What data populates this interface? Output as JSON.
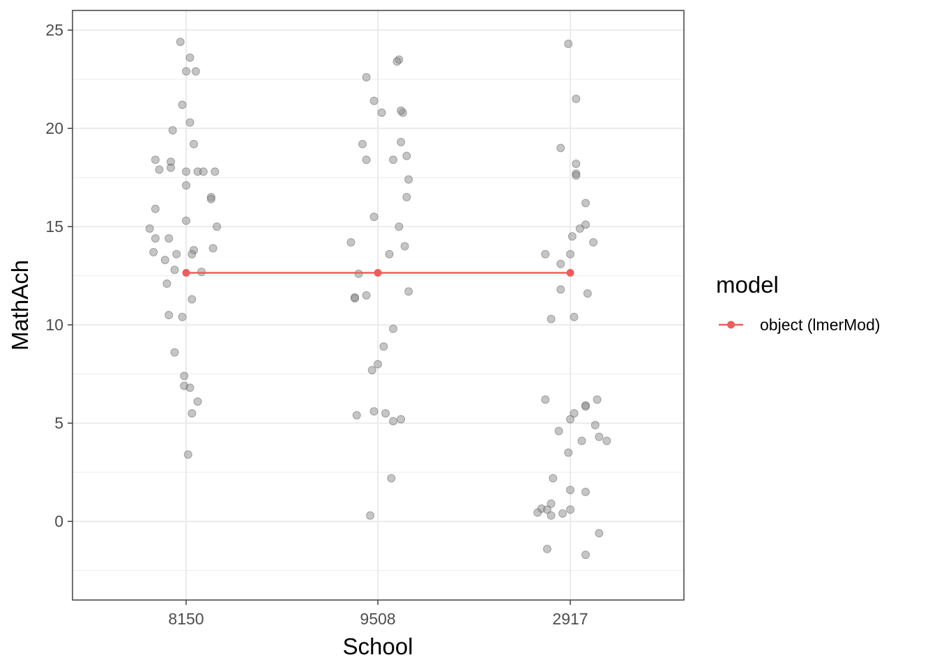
{
  "chart_data": {
    "type": "scatter",
    "xlabel": "School",
    "ylabel": "MathAch",
    "categories": [
      "8150",
      "9508",
      "2917"
    ],
    "ylim": [
      -4.0,
      26.0
    ],
    "yticks": [
      0,
      5,
      10,
      15,
      20,
      25
    ],
    "grid": true,
    "legend": {
      "title": "model",
      "placement": "right",
      "entries": [
        {
          "label": "object (lmerMod)"
        }
      ]
    },
    "colors": {
      "points": "#8c8c8c",
      "model_line": "#f05c5c",
      "grid": "#ebebeb",
      "panel_border": "#333333"
    },
    "series": [
      {
        "kind": "jittered-points",
        "points": [
          {
            "x": "8150",
            "jitter": -0.03,
            "y": 24.4
          },
          {
            "x": "8150",
            "jitter": 0.02,
            "y": 23.6
          },
          {
            "x": "8150",
            "jitter": 0.0,
            "y": 22.9
          },
          {
            "x": "8150",
            "jitter": 0.05,
            "y": 22.9
          },
          {
            "x": "8150",
            "jitter": -0.02,
            "y": 21.2
          },
          {
            "x": "8150",
            "jitter": 0.02,
            "y": 20.3
          },
          {
            "x": "8150",
            "jitter": -0.07,
            "y": 19.9
          },
          {
            "x": "8150",
            "jitter": 0.04,
            "y": 19.2
          },
          {
            "x": "8150",
            "jitter": -0.16,
            "y": 18.4
          },
          {
            "x": "8150",
            "jitter": -0.08,
            "y": 18.3
          },
          {
            "x": "8150",
            "jitter": -0.08,
            "y": 18.0
          },
          {
            "x": "8150",
            "jitter": -0.14,
            "y": 17.9
          },
          {
            "x": "8150",
            "jitter": 0.0,
            "y": 17.8
          },
          {
            "x": "8150",
            "jitter": 0.06,
            "y": 17.8
          },
          {
            "x": "8150",
            "jitter": 0.09,
            "y": 17.8
          },
          {
            "x": "8150",
            "jitter": 0.15,
            "y": 17.8
          },
          {
            "x": "8150",
            "jitter": 0.0,
            "y": 17.1
          },
          {
            "x": "8150",
            "jitter": 0.13,
            "y": 16.5
          },
          {
            "x": "8150",
            "jitter": 0.13,
            "y": 16.4
          },
          {
            "x": "8150",
            "jitter": -0.16,
            "y": 15.9
          },
          {
            "x": "8150",
            "jitter": 0.0,
            "y": 15.3
          },
          {
            "x": "8150",
            "jitter": -0.19,
            "y": 14.9
          },
          {
            "x": "8150",
            "jitter": 0.16,
            "y": 15.0
          },
          {
            "x": "8150",
            "jitter": -0.16,
            "y": 14.4
          },
          {
            "x": "8150",
            "jitter": -0.09,
            "y": 14.4
          },
          {
            "x": "8150",
            "jitter": 0.14,
            "y": 13.9
          },
          {
            "x": "8150",
            "jitter": 0.04,
            "y": 13.8
          },
          {
            "x": "8150",
            "jitter": -0.17,
            "y": 13.7
          },
          {
            "x": "8150",
            "jitter": -0.05,
            "y": 13.6
          },
          {
            "x": "8150",
            "jitter": 0.03,
            "y": 13.6
          },
          {
            "x": "8150",
            "jitter": -0.11,
            "y": 13.3
          },
          {
            "x": "8150",
            "jitter": -0.06,
            "y": 12.8
          },
          {
            "x": "8150",
            "jitter": 0.08,
            "y": 12.7
          },
          {
            "x": "8150",
            "jitter": -0.1,
            "y": 12.1
          },
          {
            "x": "8150",
            "jitter": 0.03,
            "y": 11.3
          },
          {
            "x": "8150",
            "jitter": -0.09,
            "y": 10.5
          },
          {
            "x": "8150",
            "jitter": -0.02,
            "y": 10.4
          },
          {
            "x": "8150",
            "jitter": -0.06,
            "y": 8.6
          },
          {
            "x": "8150",
            "jitter": -0.01,
            "y": 7.4
          },
          {
            "x": "8150",
            "jitter": -0.01,
            "y": 6.9
          },
          {
            "x": "8150",
            "jitter": 0.02,
            "y": 6.8
          },
          {
            "x": "8150",
            "jitter": 0.06,
            "y": 6.1
          },
          {
            "x": "8150",
            "jitter": 0.03,
            "y": 5.5
          },
          {
            "x": "8150",
            "jitter": 0.01,
            "y": 3.4
          },
          {
            "x": "9508",
            "jitter": 0.11,
            "y": 23.5
          },
          {
            "x": "9508",
            "jitter": 0.1,
            "y": 23.4
          },
          {
            "x": "9508",
            "jitter": -0.06,
            "y": 22.6
          },
          {
            "x": "9508",
            "jitter": -0.02,
            "y": 21.4
          },
          {
            "x": "9508",
            "jitter": 0.02,
            "y": 20.8
          },
          {
            "x": "9508",
            "jitter": 0.13,
            "y": 20.8
          },
          {
            "x": "9508",
            "jitter": 0.12,
            "y": 20.9
          },
          {
            "x": "9508",
            "jitter": 0.12,
            "y": 19.3
          },
          {
            "x": "9508",
            "jitter": -0.08,
            "y": 19.2
          },
          {
            "x": "9508",
            "jitter": 0.15,
            "y": 18.6
          },
          {
            "x": "9508",
            "jitter": 0.08,
            "y": 18.4
          },
          {
            "x": "9508",
            "jitter": -0.06,
            "y": 18.4
          },
          {
            "x": "9508",
            "jitter": 0.16,
            "y": 17.4
          },
          {
            "x": "9508",
            "jitter": 0.15,
            "y": 16.5
          },
          {
            "x": "9508",
            "jitter": -0.02,
            "y": 15.5
          },
          {
            "x": "9508",
            "jitter": 0.11,
            "y": 15.0
          },
          {
            "x": "9508",
            "jitter": -0.14,
            "y": 14.2
          },
          {
            "x": "9508",
            "jitter": 0.14,
            "y": 14.0
          },
          {
            "x": "9508",
            "jitter": 0.06,
            "y": 13.6
          },
          {
            "x": "9508",
            "jitter": -0.1,
            "y": 12.6
          },
          {
            "x": "9508",
            "jitter": 0.16,
            "y": 11.7
          },
          {
            "x": "9508",
            "jitter": -0.06,
            "y": 11.5
          },
          {
            "x": "9508",
            "jitter": -0.12,
            "y": 11.4
          },
          {
            "x": "9508",
            "jitter": -0.12,
            "y": 11.35
          },
          {
            "x": "9508",
            "jitter": 0.08,
            "y": 9.8
          },
          {
            "x": "9508",
            "jitter": 0.03,
            "y": 8.9
          },
          {
            "x": "9508",
            "jitter": 0.0,
            "y": 8.0
          },
          {
            "x": "9508",
            "jitter": -0.03,
            "y": 7.7
          },
          {
            "x": "9508",
            "jitter": -0.02,
            "y": 5.6
          },
          {
            "x": "9508",
            "jitter": 0.04,
            "y": 5.5
          },
          {
            "x": "9508",
            "jitter": -0.11,
            "y": 5.4
          },
          {
            "x": "9508",
            "jitter": 0.08,
            "y": 5.1
          },
          {
            "x": "9508",
            "jitter": 0.12,
            "y": 5.2
          },
          {
            "x": "9508",
            "jitter": 0.07,
            "y": 2.2
          },
          {
            "x": "9508",
            "jitter": -0.04,
            "y": 0.3
          },
          {
            "x": "2917",
            "jitter": -0.01,
            "y": 24.3
          },
          {
            "x": "2917",
            "jitter": 0.03,
            "y": 21.5
          },
          {
            "x": "2917",
            "jitter": -0.05,
            "y": 19.0
          },
          {
            "x": "2917",
            "jitter": 0.03,
            "y": 18.2
          },
          {
            "x": "2917",
            "jitter": 0.03,
            "y": 17.7
          },
          {
            "x": "2917",
            "jitter": 0.03,
            "y": 17.6
          },
          {
            "x": "2917",
            "jitter": 0.08,
            "y": 16.2
          },
          {
            "x": "2917",
            "jitter": 0.08,
            "y": 15.1
          },
          {
            "x": "2917",
            "jitter": 0.05,
            "y": 14.9
          },
          {
            "x": "2917",
            "jitter": 0.01,
            "y": 14.5
          },
          {
            "x": "2917",
            "jitter": 0.12,
            "y": 14.2
          },
          {
            "x": "2917",
            "jitter": -0.13,
            "y": 13.6
          },
          {
            "x": "2917",
            "jitter": 0.0,
            "y": 13.6
          },
          {
            "x": "2917",
            "jitter": -0.05,
            "y": 13.1
          },
          {
            "x": "2917",
            "jitter": -0.05,
            "y": 11.8
          },
          {
            "x": "2917",
            "jitter": 0.09,
            "y": 11.6
          },
          {
            "x": "2917",
            "jitter": 0.02,
            "y": 10.4
          },
          {
            "x": "2917",
            "jitter": -0.1,
            "y": 10.3
          },
          {
            "x": "2917",
            "jitter": -0.13,
            "y": 6.2
          },
          {
            "x": "2917",
            "jitter": 0.14,
            "y": 6.2
          },
          {
            "x": "2917",
            "jitter": 0.08,
            "y": 5.9
          },
          {
            "x": "2917",
            "jitter": 0.08,
            "y": 5.85
          },
          {
            "x": "2917",
            "jitter": 0.02,
            "y": 5.5
          },
          {
            "x": "2917",
            "jitter": 0.0,
            "y": 5.2
          },
          {
            "x": "2917",
            "jitter": 0.13,
            "y": 4.9
          },
          {
            "x": "2917",
            "jitter": -0.06,
            "y": 4.6
          },
          {
            "x": "2917",
            "jitter": 0.15,
            "y": 4.3
          },
          {
            "x": "2917",
            "jitter": 0.06,
            "y": 4.1
          },
          {
            "x": "2917",
            "jitter": 0.19,
            "y": 4.1
          },
          {
            "x": "2917",
            "jitter": -0.01,
            "y": 3.5
          },
          {
            "x": "2917",
            "jitter": -0.09,
            "y": 2.2
          },
          {
            "x": "2917",
            "jitter": 0.0,
            "y": 1.6
          },
          {
            "x": "2917",
            "jitter": 0.08,
            "y": 1.5
          },
          {
            "x": "2917",
            "jitter": -0.1,
            "y": 0.9
          },
          {
            "x": "2917",
            "jitter": -0.15,
            "y": 0.65
          },
          {
            "x": "2917",
            "jitter": -0.12,
            "y": 0.6
          },
          {
            "x": "2917",
            "jitter": 0.0,
            "y": 0.6
          },
          {
            "x": "2917",
            "jitter": -0.17,
            "y": 0.45
          },
          {
            "x": "2917",
            "jitter": -0.04,
            "y": 0.4
          },
          {
            "x": "2917",
            "jitter": -0.1,
            "y": 0.3
          },
          {
            "x": "2917",
            "jitter": 0.15,
            "y": -0.6
          },
          {
            "x": "2917",
            "jitter": -0.12,
            "y": -1.4
          },
          {
            "x": "2917",
            "jitter": 0.08,
            "y": -1.7
          }
        ]
      },
      {
        "kind": "line",
        "name": "object (lmerMod)",
        "values": [
          12.65,
          12.65,
          12.65
        ]
      }
    ]
  }
}
